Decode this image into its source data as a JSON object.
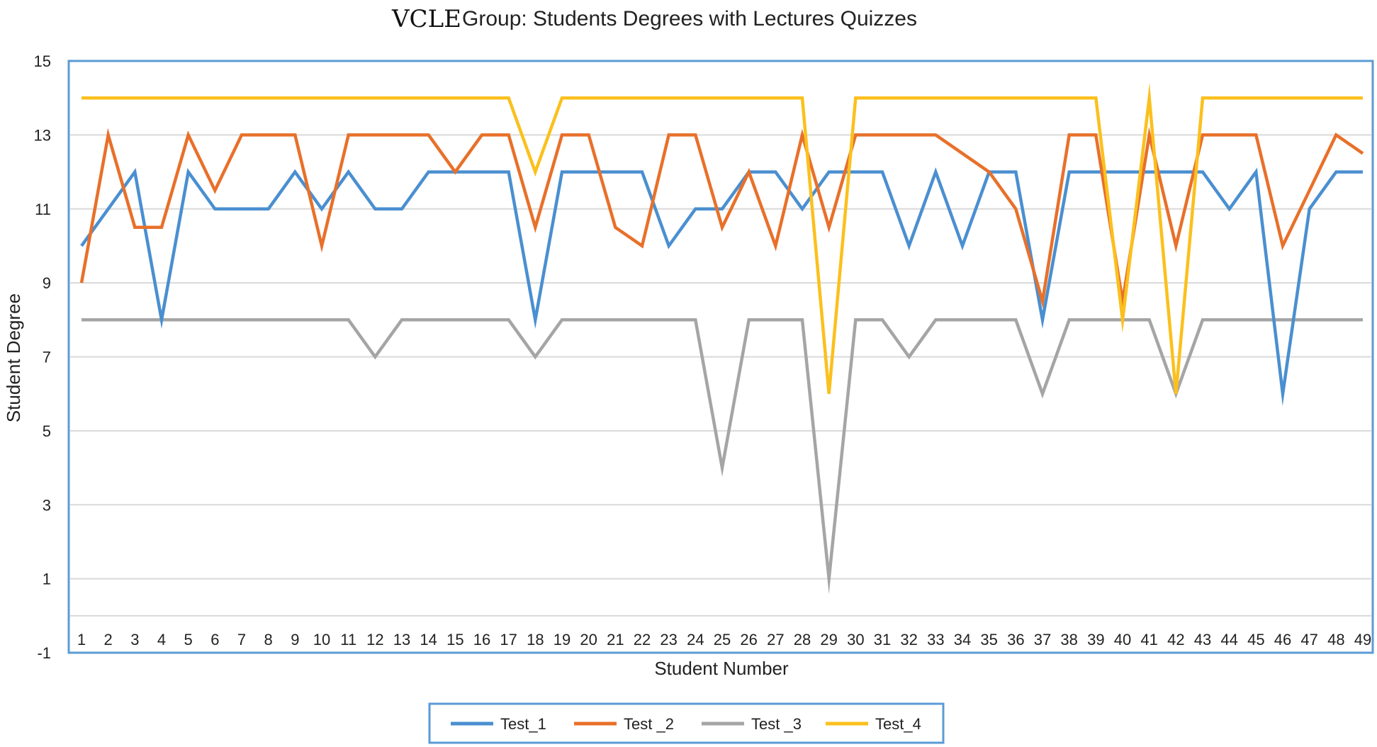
{
  "chart_data": {
    "type": "line",
    "title_prefix": "VCLE",
    "title": "Group: Students Degrees with Lectures Quizzes",
    "xlabel": "Student Number",
    "ylabel": "Student Degree",
    "ylim": [
      -1,
      15
    ],
    "yticks": [
      -1,
      1,
      3,
      5,
      7,
      9,
      11,
      13,
      15
    ],
    "categories": [
      "1",
      "2",
      "3",
      "4",
      "5",
      "6",
      "7",
      "8",
      "9",
      "10",
      "11",
      "12",
      "13",
      "14",
      "15",
      "16",
      "17",
      "18",
      "19",
      "20",
      "21",
      "22",
      "23",
      "24",
      "25",
      "26",
      "27",
      "28",
      "29",
      "30",
      "31",
      "32",
      "33",
      "34",
      "35",
      "36",
      "37",
      "38",
      "39",
      "40",
      "41",
      "42",
      "43",
      "44",
      "45",
      "46",
      "47",
      "48",
      "49"
    ],
    "grid": true,
    "legend_position": "bottom",
    "series": [
      {
        "name": "Test_1",
        "color": "#4a8fd0",
        "values": [
          10,
          11,
          12,
          8,
          12,
          11,
          11,
          11,
          12,
          11,
          12,
          11,
          11,
          12,
          12,
          12,
          12,
          8,
          12,
          12,
          12,
          12,
          10,
          11,
          11,
          12,
          12,
          11,
          12,
          12,
          12,
          10,
          12,
          10,
          12,
          12,
          8,
          12,
          12,
          12,
          12,
          12,
          12,
          11,
          12,
          6,
          11,
          12,
          12
        ]
      },
      {
        "name": "Test _2",
        "color": "#e8702a",
        "values": [
          9,
          13,
          10.5,
          10.5,
          13,
          11.5,
          13,
          13,
          13,
          10,
          13,
          13,
          13,
          13,
          12,
          13,
          13,
          10.5,
          13,
          13,
          10.5,
          10,
          13,
          13,
          10.5,
          12,
          10,
          13,
          10.5,
          13,
          13,
          13,
          13,
          12.5,
          12,
          11,
          8.5,
          13,
          13,
          8.5,
          13,
          10,
          13,
          13,
          13,
          10,
          11.5,
          13,
          12.5
        ]
      },
      {
        "name": "Test _3",
        "color": "#a5a5a5",
        "values": [
          8,
          8,
          8,
          8,
          8,
          8,
          8,
          8,
          8,
          8,
          8,
          7,
          8,
          8,
          8,
          8,
          8,
          7,
          8,
          8,
          8,
          8,
          8,
          8,
          4,
          8,
          8,
          8,
          1,
          8,
          8,
          7,
          8,
          8,
          8,
          8,
          6,
          8,
          8,
          8,
          8,
          6,
          8,
          8,
          8,
          8,
          8,
          8,
          8
        ]
      },
      {
        "name": "Test_4",
        "color": "#fbc01d",
        "values": [
          14,
          14,
          14,
          14,
          14,
          14,
          14,
          14,
          14,
          14,
          14,
          14,
          14,
          14,
          14,
          14,
          14,
          12,
          14,
          14,
          14,
          14,
          14,
          14,
          14,
          14,
          14,
          14,
          6,
          14,
          14,
          14,
          14,
          14,
          14,
          14,
          14,
          14,
          14,
          8,
          14,
          6,
          14,
          14,
          14,
          14,
          14,
          14,
          14
        ]
      }
    ]
  }
}
